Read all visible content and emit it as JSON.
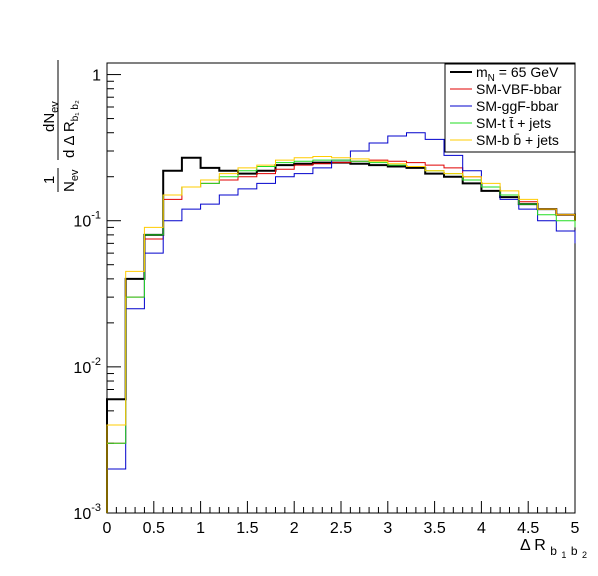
{
  "chart_data": {
    "type": "line",
    "drawstyle": "step",
    "xlim": [
      0,
      5
    ],
    "ylim": [
      0.001,
      1.2
    ],
    "yscale": "log",
    "grid": false,
    "legend_position": "top-right",
    "xlabel": {
      "main": "Δ R",
      "sub1": "b",
      "sub1_index": "1",
      "sub2": "b",
      "sub2_index": "2"
    },
    "ylabel": {
      "prefix": "1",
      "prefix_den_main": "N",
      "prefix_den_sub": "ev",
      "num_main": "dN",
      "num_sub": "ev",
      "den_main": "d Δ R",
      "den_sub": "b₁ b₂"
    },
    "x_ticks": [
      0,
      0.5,
      1,
      1.5,
      2,
      2.5,
      3,
      3.5,
      4,
      4.5,
      5
    ],
    "x_tick_labels": [
      "0",
      "0.5",
      "1",
      "1.5",
      "2",
      "2.5",
      "3",
      "3.5",
      "4",
      "4.5",
      "5"
    ],
    "y_ticks": [
      {
        "value": 0.001,
        "base": "10",
        "exp": "-3"
      },
      {
        "value": 0.01,
        "base": "10",
        "exp": "-2"
      },
      {
        "value": 0.1,
        "base": "10",
        "exp": "-1"
      },
      {
        "value": 1,
        "base": "1",
        "exp": ""
      }
    ],
    "x": [
      0.0,
      0.2,
      0.4,
      0.6,
      0.8,
      1.0,
      1.2,
      1.4,
      1.6,
      1.8,
      2.0,
      2.2,
      2.4,
      2.6,
      2.8,
      3.0,
      3.2,
      3.4,
      3.6,
      3.8,
      4.0,
      4.2,
      4.4,
      4.6,
      4.8,
      5.0
    ],
    "series": [
      {
        "name": "m_N = 65 GeV",
        "legend_main": "m",
        "legend_sub": "N",
        "legend_rest": " = 65 GeV",
        "color": "#000000",
        "width": 2,
        "values": [
          0.006,
          0.04,
          0.08,
          0.22,
          0.27,
          0.23,
          0.22,
          0.21,
          0.22,
          0.24,
          0.245,
          0.25,
          0.25,
          0.245,
          0.24,
          0.235,
          0.23,
          0.21,
          0.2,
          0.18,
          0.16,
          0.145,
          0.13,
          0.12,
          0.11,
          0.1
        ]
      },
      {
        "name": "SM-VBF-bbar",
        "legend_main": "SM-VBF-bbar",
        "legend_sub": "",
        "legend_rest": "",
        "color": "#e00000",
        "width": 1,
        "values": [
          0.003,
          0.03,
          0.075,
          0.14,
          0.17,
          0.18,
          0.19,
          0.2,
          0.21,
          0.225,
          0.24,
          0.245,
          0.25,
          0.255,
          0.26,
          0.255,
          0.25,
          0.24,
          0.23,
          0.2,
          0.17,
          0.15,
          0.135,
          0.12,
          0.11,
          0.09
        ]
      },
      {
        "name": "SM-ggF-bbar",
        "legend_main": "SM-ggF-bbar",
        "legend_sub": "",
        "legend_rest": "",
        "color": "#0000cc",
        "width": 1,
        "values": [
          0.002,
          0.025,
          0.06,
          0.1,
          0.12,
          0.13,
          0.15,
          0.165,
          0.18,
          0.2,
          0.21,
          0.23,
          0.26,
          0.3,
          0.34,
          0.38,
          0.4,
          0.36,
          0.28,
          0.22,
          0.17,
          0.14,
          0.12,
          0.1,
          0.085,
          0.07
        ]
      },
      {
        "name": "SM-t t̄ + jets",
        "legend_main": "SM-t t̄ + jets",
        "legend_sub": "",
        "legend_rest": "",
        "color": "#22dd22",
        "width": 1,
        "values": [
          0.003,
          0.03,
          0.08,
          0.15,
          0.17,
          0.18,
          0.2,
          0.22,
          0.235,
          0.25,
          0.255,
          0.26,
          0.26,
          0.255,
          0.25,
          0.24,
          0.235,
          0.22,
          0.21,
          0.19,
          0.17,
          0.15,
          0.13,
          0.11,
          0.1,
          0.09
        ]
      },
      {
        "name": "SM-b b̄ + jets",
        "legend_main": "SM-b b̄ + jets",
        "legend_sub": "",
        "legend_rest": "",
        "color": "#ffcc00",
        "width": 1,
        "values": [
          0.004,
          0.045,
          0.09,
          0.15,
          0.17,
          0.19,
          0.21,
          0.23,
          0.24,
          0.26,
          0.27,
          0.275,
          0.27,
          0.265,
          0.255,
          0.245,
          0.235,
          0.22,
          0.21,
          0.2,
          0.18,
          0.16,
          0.14,
          0.12,
          0.11,
          0.1
        ]
      }
    ]
  }
}
